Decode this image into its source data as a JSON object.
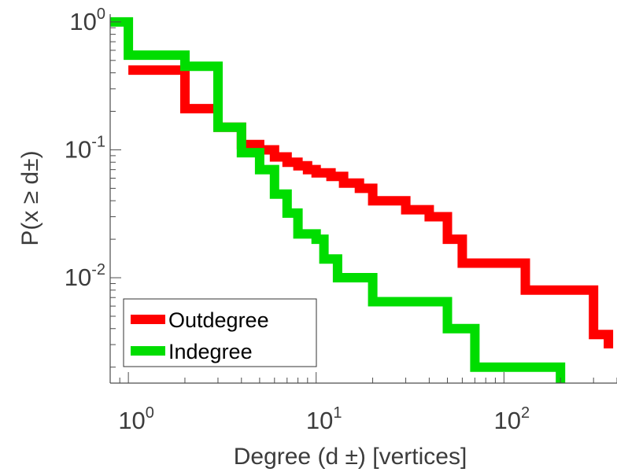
{
  "chart_data": {
    "type": "line",
    "line_style": "step",
    "scale": {
      "x": "log",
      "y": "log"
    },
    "title": "",
    "xlabel": "Degree (d  ±) [vertices]",
    "ylabel": "P(x ≥ d±)",
    "xlim": [
      0.8,
      400
    ],
    "ylim": [
      0.0015,
      1.15
    ],
    "x_ticks": [
      {
        "value": 1,
        "base": "10",
        "exp": "0"
      },
      {
        "value": 10,
        "base": "10",
        "exp": "1"
      },
      {
        "value": 100,
        "base": "10",
        "exp": "2"
      }
    ],
    "y_ticks": [
      {
        "value": 1,
        "base": "10",
        "exp": "0"
      },
      {
        "value": 0.1,
        "base": "10",
        "exp": "-1"
      },
      {
        "value": 0.01,
        "base": "10",
        "exp": "-2"
      }
    ],
    "legend": {
      "position": "bottom-left"
    },
    "series": [
      {
        "name": "Outdegree",
        "color": "#ff0000",
        "x": [
          1,
          2,
          3,
          4,
          5,
          6,
          7,
          8,
          9,
          10,
          12,
          14,
          17,
          20,
          30,
          40,
          50,
          60,
          130,
          300,
          360
        ],
        "y": [
          0.42,
          0.21,
          0.15,
          0.11,
          0.1,
          0.088,
          0.08,
          0.075,
          0.07,
          0.066,
          0.062,
          0.055,
          0.05,
          0.04,
          0.034,
          0.03,
          0.02,
          0.013,
          0.008,
          0.0036,
          0.0028
        ]
      },
      {
        "name": "Indegree",
        "color": "#00dd00",
        "x": [
          0.8,
          1,
          2,
          3,
          4,
          5,
          6,
          7,
          8,
          10,
          11,
          13,
          20,
          50,
          70,
          200
        ],
        "y": [
          1.0,
          0.55,
          0.45,
          0.15,
          0.095,
          0.07,
          0.045,
          0.032,
          0.022,
          0.02,
          0.014,
          0.01,
          0.0065,
          0.004,
          0.002,
          0.0015
        ]
      }
    ]
  }
}
